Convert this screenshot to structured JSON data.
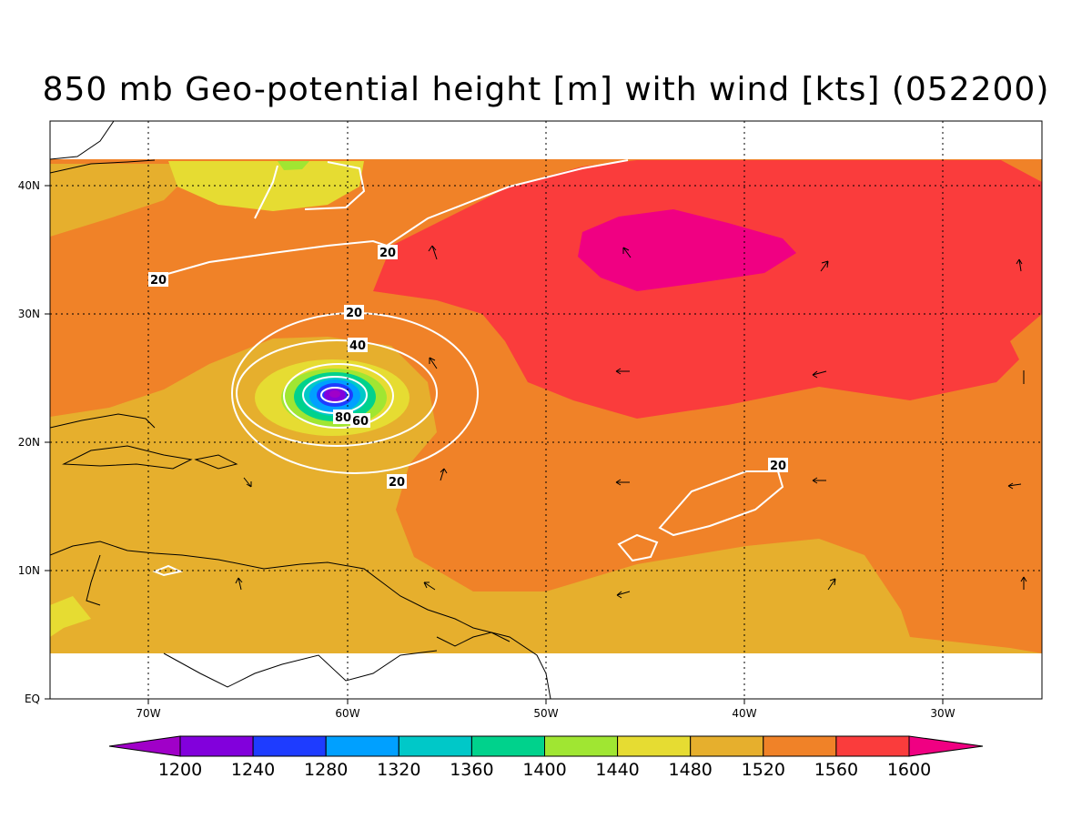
{
  "title": "850 mb Geo-potential height [m] with wind [kts] (052200)",
  "map": {
    "lon_range": [
      -75,
      -25
    ],
    "lat_range": [
      0,
      45
    ],
    "x_ticks": [
      "70W",
      "60W",
      "50W",
      "40W",
      "30W"
    ],
    "y_ticks": [
      "EQ",
      "10N",
      "20N",
      "30N",
      "40N"
    ],
    "grid": "dotted",
    "filled_field": "850 mb Geo-potential height [m]",
    "contour_field": "wind [kts]",
    "contour_labels": [
      "20",
      "20",
      "20",
      "40",
      "60",
      "80",
      "20",
      "20"
    ]
  },
  "colorbar": {
    "labels": [
      "1200",
      "1240",
      "1280",
      "1320",
      "1360",
      "1400",
      "1440",
      "1480",
      "1520",
      "1560",
      "1600"
    ],
    "colors": [
      "#a000c8",
      "#8200dc",
      "#1e3cff",
      "#00a0ff",
      "#00c8c8",
      "#00d28c",
      "#a0e632",
      "#e6dc32",
      "#e6af2d",
      "#f08228",
      "#fa3c3c",
      "#f00082"
    ]
  }
}
